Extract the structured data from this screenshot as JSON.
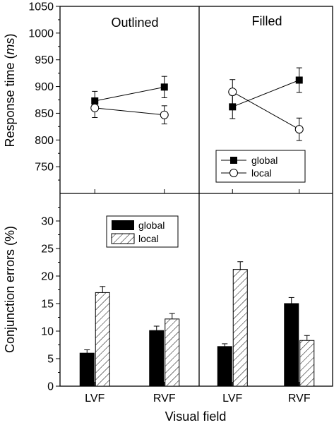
{
  "chart_data": [
    {
      "type": "line",
      "panel": "top",
      "ylabel_prefix": "Response time (",
      "ylabel_unit": "ms",
      "ylabel_suffix": ")",
      "ylim": [
        700,
        1050
      ],
      "yticks": [
        750,
        800,
        850,
        900,
        950,
        1000,
        1050
      ],
      "categories": [
        "LVF",
        "RVF"
      ],
      "legend": {
        "placement": "lower-left of right panel",
        "entries": [
          "global",
          "local"
        ]
      },
      "subplots": [
        {
          "title": "Outlined",
          "series": [
            {
              "name": "global",
              "marker": "filled-square",
              "values": [
                873,
                899
              ],
              "errors": [
                18,
                20
              ]
            },
            {
              "name": "local",
              "marker": "open-circle",
              "values": [
                860,
                847
              ],
              "errors": [
                18,
                17
              ]
            }
          ]
        },
        {
          "title": "Filled",
          "series": [
            {
              "name": "global",
              "marker": "filled-square",
              "values": [
                862,
                912
              ],
              "errors": [
                22,
                23
              ]
            },
            {
              "name": "local",
              "marker": "open-circle",
              "values": [
                890,
                820
              ],
              "errors": [
                23,
                21
              ]
            }
          ]
        }
      ]
    },
    {
      "type": "bar",
      "panel": "bottom",
      "ylabel": "Conjunction errors (%)",
      "xlabel": "Visual field",
      "ylim": [
        0,
        35
      ],
      "yticks": [
        0,
        5,
        10,
        15,
        20,
        25,
        30
      ],
      "categories": [
        "LVF",
        "RVF"
      ],
      "legend": {
        "placement": "top-right of left panel",
        "entries": [
          "global",
          "local"
        ]
      },
      "subplots": [
        {
          "series": [
            {
              "name": "global",
              "fill": "#000000",
              "values": [
                6.0,
                10.1
              ],
              "errors": [
                0.6,
                0.8
              ]
            },
            {
              "name": "local",
              "fill": "hatched",
              "values": [
                17.0,
                12.2
              ],
              "errors": [
                1.1,
                1.0
              ]
            }
          ]
        },
        {
          "series": [
            {
              "name": "global",
              "fill": "#000000",
              "values": [
                7.2,
                15.0
              ],
              "errors": [
                0.5,
                1.1
              ]
            },
            {
              "name": "local",
              "fill": "hatched",
              "values": [
                21.2,
                8.3
              ],
              "errors": [
                1.4,
                0.9
              ]
            }
          ]
        }
      ]
    }
  ]
}
